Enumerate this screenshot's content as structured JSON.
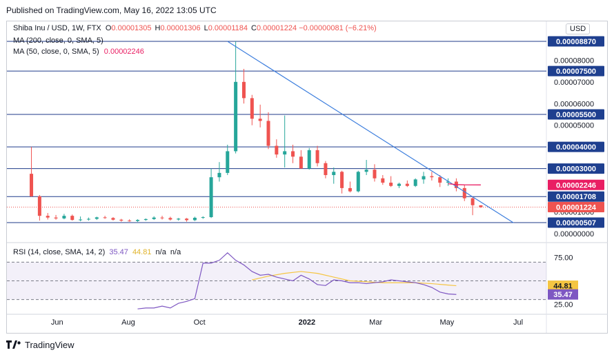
{
  "header": {
    "published": "Published on TradingView.com, May 16, 2022 13:05 UTC"
  },
  "legend": {
    "symbol": "Shiba Inu / USD, 1W, FTX",
    "ohlc": [
      {
        "label": "O",
        "value": "0.00001305"
      },
      {
        "label": "H",
        "value": "0.00001306"
      },
      {
        "label": "L",
        "value": "0.00001184"
      },
      {
        "label": "C",
        "value": "0.00001224"
      }
    ],
    "change": "−0.00000081 (−6.21%)",
    "ma200": "MA (200, close, 0, SMA, 5)",
    "ma50_label": "MA (50, close, 0, SMA, 5)",
    "ma50_value": "0.00002246",
    "currency_button": "USD"
  },
  "rsi_legend": {
    "label": "RSI (14, close, SMA, 14, 2)",
    "rsi_value": "35.47",
    "sma_value": "44.81",
    "na1": "n/a",
    "na2": "n/a"
  },
  "footer": {
    "brand": "TradingView"
  },
  "colors": {
    "up": "#26a69a",
    "down": "#ef5350",
    "hline": "#1e3a8a",
    "trend": "#3b7ddd",
    "ma50": "#e91e63",
    "rsi": "#7e57c2",
    "rsi_sma": "#f5c542",
    "price_badge_last": "#ef5350",
    "price_badge_ma": "#e91e63",
    "price_badge_line": "#1e3f8f"
  },
  "chart_data": [
    {
      "type": "candlestick",
      "title": "Shiba Inu / USD, 1W, FTX",
      "x_tick_labels": [
        "Jun",
        "Aug",
        "Oct",
        "2022",
        "Mar",
        "May",
        "Jul"
      ],
      "y_tick_labels": [
        "0.00008000",
        "0.00007000",
        "0.00006000",
        "0.00005000",
        "0.00001000",
        "0.00000000"
      ],
      "ylim": [
        0,
        9e-05
      ],
      "horizontal_levels": [
        "0.00008870",
        "0.00007500",
        "0.00005500",
        "0.00004000",
        "0.00003000",
        "0.00001708",
        "0.00000507"
      ],
      "price_labels": {
        "ma50": "0.00002246",
        "last": "0.00001224"
      },
      "trendline": {
        "from": {
          "date": "2021-10-25",
          "price": 8.87e-05
        },
        "to": {
          "date": "2022-06-27",
          "price": 5e-06
        }
      },
      "candles": [
        {
          "date": "2021-05-10",
          "o": 2.76e-05,
          "h": 4e-05,
          "l": 1.7e-05,
          "c": 1.72e-05
        },
        {
          "date": "2021-05-17",
          "o": 1.72e-05,
          "h": 1.78e-05,
          "l": 6e-06,
          "c": 8.2e-06
        },
        {
          "date": "2021-05-24",
          "o": 8.2e-06,
          "h": 9.5e-06,
          "l": 6.5e-06,
          "c": 7.4e-06
        },
        {
          "date": "2021-05-31",
          "o": 7.4e-06,
          "h": 8.6e-06,
          "l": 6.4e-06,
          "c": 7e-06
        },
        {
          "date": "2021-06-07",
          "o": 7e-06,
          "h": 9.1e-06,
          "l": 6.6e-06,
          "c": 8.2e-06
        },
        {
          "date": "2021-06-14",
          "o": 8.2e-06,
          "h": 8.8e-06,
          "l": 6e-06,
          "c": 6.3e-06
        },
        {
          "date": "2021-06-21",
          "o": 6.3e-06,
          "h": 7.9e-06,
          "l": 5.7e-06,
          "c": 6.5e-06
        },
        {
          "date": "2021-06-28",
          "o": 6.5e-06,
          "h": 7.4e-06,
          "l": 6e-06,
          "c": 6.8e-06
        },
        {
          "date": "2021-07-05",
          "o": 6.8e-06,
          "h": 7.8e-06,
          "l": 6.3e-06,
          "c": 7.5e-06
        },
        {
          "date": "2021-07-12",
          "o": 7.5e-06,
          "h": 8.2e-06,
          "l": 6.8e-06,
          "c": 7.2e-06
        },
        {
          "date": "2021-07-19",
          "o": 7.2e-06,
          "h": 7.6e-06,
          "l": 6e-06,
          "c": 6.4e-06
        },
        {
          "date": "2021-07-26",
          "o": 6.4e-06,
          "h": 6.8e-06,
          "l": 5.5e-06,
          "c": 6e-06
        },
        {
          "date": "2021-08-02",
          "o": 6e-06,
          "h": 6.6e-06,
          "l": 5.5e-06,
          "c": 5.8e-06
        },
        {
          "date": "2021-08-09",
          "o": 5.8e-06,
          "h": 6.6e-06,
          "l": 5.4e-06,
          "c": 6.3e-06
        },
        {
          "date": "2021-08-16",
          "o": 6.3e-06,
          "h": 7e-06,
          "l": 5.9e-06,
          "c": 6.7e-06
        },
        {
          "date": "2021-08-23",
          "o": 6.7e-06,
          "h": 8e-06,
          "l": 6.3e-06,
          "c": 7.4e-06
        },
        {
          "date": "2021-08-30",
          "o": 7.4e-06,
          "h": 8.2e-06,
          "l": 6.5e-06,
          "c": 7.2e-06
        },
        {
          "date": "2021-09-06",
          "o": 7.2e-06,
          "h": 7.8e-06,
          "l": 6e-06,
          "c": 6.5e-06
        },
        {
          "date": "2021-09-13",
          "o": 6.5e-06,
          "h": 7.2e-06,
          "l": 6e-06,
          "c": 6.9e-06
        },
        {
          "date": "2021-09-20",
          "o": 6.9e-06,
          "h": 7.2e-06,
          "l": 5.5e-06,
          "c": 6.2e-06
        },
        {
          "date": "2021-09-27",
          "o": 6.2e-06,
          "h": 7.8e-06,
          "l": 5.8e-06,
          "c": 7.3e-06
        },
        {
          "date": "2021-10-04",
          "o": 7.3e-06,
          "h": 8e-06,
          "l": 6.8e-06,
          "c": 7.6e-06
        },
        {
          "date": "2021-10-11",
          "o": 7.6e-06,
          "h": 3e-05,
          "l": 7.2e-06,
          "c": 2.6e-05
        },
        {
          "date": "2021-10-18",
          "o": 2.6e-05,
          "h": 3.3e-05,
          "l": 2.4e-05,
          "c": 2.8e-05
        },
        {
          "date": "2021-10-25",
          "o": 2.8e-05,
          "h": 4.1e-05,
          "l": 2.7e-05,
          "c": 3.8e-05
        },
        {
          "date": "2021-11-01",
          "o": 3.8e-05,
          "h": 8.87e-05,
          "l": 3.7e-05,
          "c": 7e-05
        },
        {
          "date": "2021-11-08",
          "o": 7e-05,
          "h": 7.6e-05,
          "l": 6e-05,
          "c": 6.25e-05
        },
        {
          "date": "2021-11-15",
          "o": 6.25e-05,
          "h": 6.4e-05,
          "l": 5e-05,
          "c": 5.3e-05
        },
        {
          "date": "2021-11-22",
          "o": 5.3e-05,
          "h": 5.95e-05,
          "l": 4.9e-05,
          "c": 5.2e-05
        },
        {
          "date": "2021-11-29",
          "o": 5.2e-05,
          "h": 5.6e-05,
          "l": 3.9e-05,
          "c": 4.05e-05
        },
        {
          "date": "2021-12-06",
          "o": 4.05e-05,
          "h": 4.35e-05,
          "l": 3.5e-05,
          "c": 3.65e-05
        },
        {
          "date": "2021-12-13",
          "o": 3.65e-05,
          "h": 5.45e-05,
          "l": 3.05e-05,
          "c": 3.8e-05
        },
        {
          "date": "2021-12-20",
          "o": 3.8e-05,
          "h": 4.1e-05,
          "l": 3.25e-05,
          "c": 3.55e-05
        },
        {
          "date": "2021-12-27",
          "o": 3.55e-05,
          "h": 3.85e-05,
          "l": 3e-05,
          "c": 3e-05
        },
        {
          "date": "2022-01-03",
          "o": 3e-05,
          "h": 3.95e-05,
          "l": 2.95e-05,
          "c": 3.85e-05
        },
        {
          "date": "2022-01-10",
          "o": 3.85e-05,
          "h": 4.05e-05,
          "l": 3.1e-05,
          "c": 3.25e-05
        },
        {
          "date": "2022-01-17",
          "o": 3.25e-05,
          "h": 3.35e-05,
          "l": 2.55e-05,
          "c": 2.7e-05
        },
        {
          "date": "2022-01-24",
          "o": 2.7e-05,
          "h": 3.05e-05,
          "l": 2.3e-05,
          "c": 2.85e-05
        },
        {
          "date": "2022-01-31",
          "o": 2.85e-05,
          "h": 2.9e-05,
          "l": 1.85e-05,
          "c": 2.1e-05
        },
        {
          "date": "2022-02-07",
          "o": 2.1e-05,
          "h": 2.4e-05,
          "l": 1.9e-05,
          "c": 1.95e-05
        },
        {
          "date": "2022-02-14",
          "o": 1.95e-05,
          "h": 2.9e-05,
          "l": 1.9e-05,
          "c": 2.85e-05
        },
        {
          "date": "2022-02-21",
          "o": 2.85e-05,
          "h": 3.4e-05,
          "l": 2.7e-05,
          "c": 2.95e-05
        },
        {
          "date": "2022-02-28",
          "o": 2.95e-05,
          "h": 3.2e-05,
          "l": 2.4e-05,
          "c": 2.55e-05
        },
        {
          "date": "2022-03-07",
          "o": 2.55e-05,
          "h": 2.7e-05,
          "l": 2.25e-05,
          "c": 2.35e-05
        },
        {
          "date": "2022-03-14",
          "o": 2.35e-05,
          "h": 2.65e-05,
          "l": 2.15e-05,
          "c": 2.2e-05
        },
        {
          "date": "2022-03-21",
          "o": 2.2e-05,
          "h": 2.35e-05,
          "l": 2.1e-05,
          "c": 2.3e-05
        },
        {
          "date": "2022-03-28",
          "o": 2.3e-05,
          "h": 2.45e-05,
          "l": 2.15e-05,
          "c": 2.2e-05
        },
        {
          "date": "2022-04-04",
          "o": 2.2e-05,
          "h": 2.55e-05,
          "l": 2.15e-05,
          "c": 2.5e-05
        },
        {
          "date": "2022-04-11",
          "o": 2.5e-05,
          "h": 2.85e-05,
          "l": 2.3e-05,
          "c": 2.65e-05
        },
        {
          "date": "2022-04-18",
          "o": 2.65e-05,
          "h": 2.85e-05,
          "l": 2.45e-05,
          "c": 2.6e-05
        },
        {
          "date": "2022-04-25",
          "o": 2.6e-05,
          "h": 2.7e-05,
          "l": 2.15e-05,
          "c": 2.35e-05
        },
        {
          "date": "2022-05-02",
          "o": 2.35e-05,
          "h": 2.55e-05,
          "l": 2.2e-05,
          "c": 2.4e-05
        },
        {
          "date": "2022-05-09",
          "o": 2.4e-05,
          "h": 2.55e-05,
          "l": 1.95e-05,
          "c": 2.1e-05
        },
        {
          "date": "2022-05-16",
          "o": 2.1e-05,
          "h": 2.25e-05,
          "l": 1.5e-05,
          "c": 1.63e-05
        },
        {
          "date": "2022-05-23",
          "o": 1.63e-05,
          "h": 1.72e-05,
          "l": 8.5e-06,
          "c": 1.31e-05
        },
        {
          "date": "2022-05-30",
          "o": 1.305e-05,
          "h": 1.306e-05,
          "l": 1.184e-05,
          "c": 1.224e-05
        }
      ],
      "ma50": [
        {
          "date": "2022-05-02",
          "value": 2.3e-05
        },
        {
          "date": "2022-05-09",
          "value": 2.262e-05
        },
        {
          "date": "2022-05-16",
          "value": 2.25e-05
        },
        {
          "date": "2022-05-30",
          "value": 2.246e-05
        }
      ]
    },
    {
      "type": "line",
      "title": "RSI (14, close, SMA, 14, 2)",
      "y_tick_labels": [
        "75.00",
        "25.00"
      ],
      "ylim": [
        15,
        85
      ],
      "band": [
        30,
        70
      ],
      "midline": 50,
      "series": [
        {
          "name": "RSI",
          "points": [
            {
              "date": "2021-08-09",
              "value": 20
            },
            {
              "date": "2021-08-16",
              "value": 21
            },
            {
              "date": "2021-08-23",
              "value": 21
            },
            {
              "date": "2021-08-30",
              "value": 23
            },
            {
              "date": "2021-09-06",
              "value": 21
            },
            {
              "date": "2021-09-13",
              "value": 26
            },
            {
              "date": "2021-09-20",
              "value": 28
            },
            {
              "date": "2021-09-27",
              "value": 31
            },
            {
              "date": "2021-10-04",
              "value": 69
            },
            {
              "date": "2021-10-11",
              "value": 69
            },
            {
              "date": "2021-10-18",
              "value": 72
            },
            {
              "date": "2021-10-25",
              "value": 80
            },
            {
              "date": "2021-11-01",
              "value": 72
            },
            {
              "date": "2021-11-08",
              "value": 67
            },
            {
              "date": "2021-11-15",
              "value": 60
            },
            {
              "date": "2021-11-22",
              "value": 56
            },
            {
              "date": "2021-11-29",
              "value": 57
            },
            {
              "date": "2021-12-06",
              "value": 54
            },
            {
              "date": "2021-12-13",
              "value": 52
            },
            {
              "date": "2021-12-20",
              "value": 50
            },
            {
              "date": "2021-12-27",
              "value": 56
            },
            {
              "date": "2022-01-03",
              "value": 52
            },
            {
              "date": "2022-01-10",
              "value": 46
            },
            {
              "date": "2022-01-17",
              "value": 45
            },
            {
              "date": "2022-01-24",
              "value": 51
            },
            {
              "date": "2022-01-31",
              "value": 50
            },
            {
              "date": "2022-02-07",
              "value": 48
            },
            {
              "date": "2022-02-14",
              "value": 48
            },
            {
              "date": "2022-02-21",
              "value": 47
            },
            {
              "date": "2022-02-28",
              "value": 48
            },
            {
              "date": "2022-03-07",
              "value": 49
            },
            {
              "date": "2022-03-14",
              "value": 51
            },
            {
              "date": "2022-03-21",
              "value": 50
            },
            {
              "date": "2022-03-28",
              "value": 49
            },
            {
              "date": "2022-04-04",
              "value": 48
            },
            {
              "date": "2022-04-11",
              "value": 46
            },
            {
              "date": "2022-04-18",
              "value": 43
            },
            {
              "date": "2022-04-25",
              "value": 38
            },
            {
              "date": "2022-05-02",
              "value": 36
            },
            {
              "date": "2022-05-09",
              "value": 35.47
            }
          ]
        },
        {
          "name": "RSI-based MA",
          "points": [
            {
              "date": "2021-11-15",
              "value": 51
            },
            {
              "date": "2021-11-29",
              "value": 55
            },
            {
              "date": "2021-12-13",
              "value": 58
            },
            {
              "date": "2021-12-27",
              "value": 60
            },
            {
              "date": "2022-01-10",
              "value": 58
            },
            {
              "date": "2022-01-24",
              "value": 54
            },
            {
              "date": "2022-02-07",
              "value": 50
            },
            {
              "date": "2022-02-21",
              "value": 49
            },
            {
              "date": "2022-03-07",
              "value": 48
            },
            {
              "date": "2022-03-21",
              "value": 48
            },
            {
              "date": "2022-04-04",
              "value": 48
            },
            {
              "date": "2022-04-18",
              "value": 47
            },
            {
              "date": "2022-05-02",
              "value": 45.5
            },
            {
              "date": "2022-05-09",
              "value": 44.81
            }
          ]
        }
      ],
      "labels": {
        "rsi": "35.47",
        "rsi_ma": "44.81"
      }
    }
  ]
}
